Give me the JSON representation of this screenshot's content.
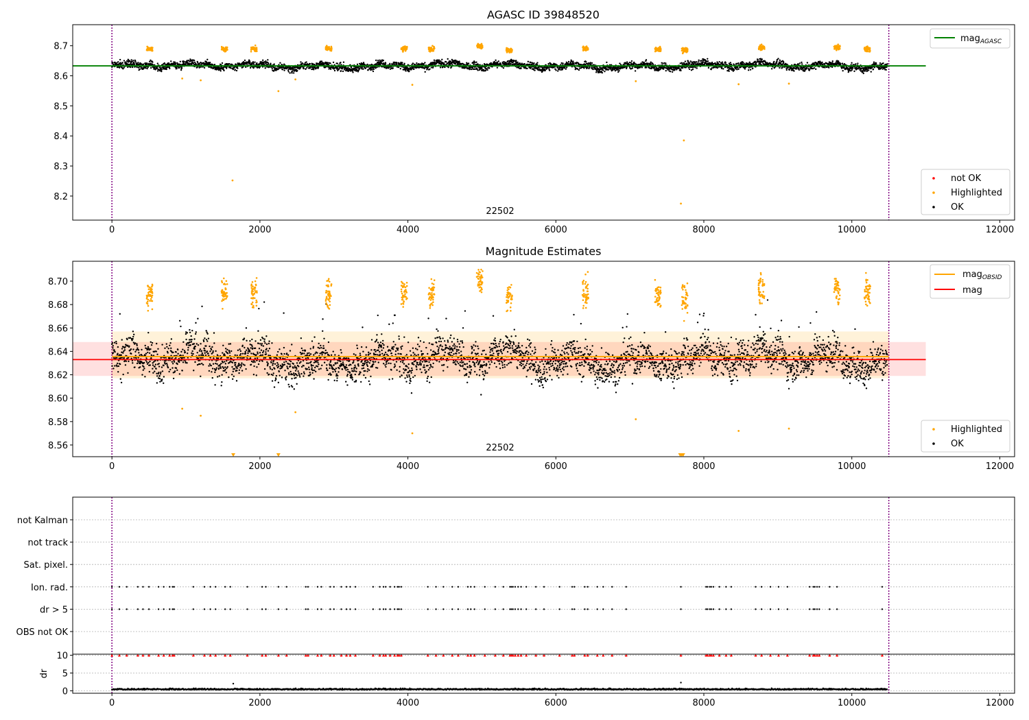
{
  "chart_data": [
    {
      "type": "scatter",
      "title": "AGASC ID 39848520",
      "obsid_label": "22502",
      "xlim": [
        -530,
        12200
      ],
      "ylim": [
        8.12,
        8.77
      ],
      "xticks": [
        0,
        2000,
        4000,
        6000,
        8000,
        10000,
        12000
      ],
      "yticks": [
        8.2,
        8.3,
        8.4,
        8.5,
        8.6,
        8.7
      ],
      "ytick_labels": [
        "8.2",
        "8.3",
        "8.4",
        "8.5",
        "8.6",
        "8.7"
      ],
      "obs_bounds": [
        0,
        10500
      ],
      "mag_agasc": 8.633,
      "mag_agasc_range": [
        -530,
        11000
      ],
      "legend_lines": [
        {
          "name": "mag",
          "sub": "AGASC",
          "color": "#008000"
        }
      ],
      "legend_points": [
        {
          "name": "not OK",
          "color": "#ff0000"
        },
        {
          "name": "Highlighted",
          "color": "#ffa500"
        },
        {
          "name": "OK",
          "color": "#000000"
        }
      ],
      "ok_band": [
        8.618,
        8.648
      ],
      "highlight_clusters": [
        [
          510,
          8.69
        ],
        [
          1520,
          8.69
        ],
        [
          1920,
          8.69
        ],
        [
          2930,
          8.69
        ],
        [
          3950,
          8.69
        ],
        [
          4320,
          8.69
        ],
        [
          4970,
          8.7
        ],
        [
          5370,
          8.685
        ],
        [
          6400,
          8.69
        ],
        [
          7380,
          8.687
        ],
        [
          7740,
          8.685
        ],
        [
          8780,
          8.693
        ],
        [
          9800,
          8.693
        ],
        [
          10210,
          8.69
        ]
      ],
      "outliers": [
        [
          950,
          8.591
        ],
        [
          1200,
          8.585
        ],
        [
          1630,
          8.252
        ],
        [
          2250,
          8.549
        ],
        [
          2480,
          8.588
        ],
        [
          4060,
          8.57
        ],
        [
          7080,
          8.582
        ],
        [
          7690,
          8.175
        ],
        [
          7730,
          8.385
        ],
        [
          8470,
          8.572
        ],
        [
          9150,
          8.574
        ]
      ]
    },
    {
      "type": "scatter",
      "title": "Magnitude Estimates",
      "obsid_label": "22502",
      "xlim": [
        -530,
        12200
      ],
      "ylim": [
        8.55,
        8.717
      ],
      "xticks": [
        0,
        2000,
        4000,
        6000,
        8000,
        10000,
        12000
      ],
      "yticks": [
        8.56,
        8.58,
        8.6,
        8.62,
        8.64,
        8.66,
        8.68,
        8.7
      ],
      "ytick_labels": [
        "8.56",
        "8.58",
        "8.60",
        "8.62",
        "8.64",
        "8.66",
        "8.68",
        "8.70"
      ],
      "obs_bounds": [
        0,
        10500
      ],
      "mag_obsid": 8.6355,
      "mag_obsid_band": [
        8.617,
        8.657
      ],
      "mag": 8.633,
      "mag_band": [
        8.619,
        8.648
      ],
      "mag_range": [
        -530,
        11000
      ],
      "legend_lines": [
        {
          "name": "mag",
          "sub": "OBSID",
          "color": "#ffa500"
        },
        {
          "name": "mag",
          "sub": "",
          "color": "#ff0000"
        }
      ],
      "legend_points": [
        {
          "name": "Highlighted",
          "color": "#ffa500"
        },
        {
          "name": "OK",
          "color": "#000000"
        }
      ],
      "below_markers": [
        1640,
        2250,
        7680,
        7700,
        7720
      ]
    },
    {
      "type": "scatter",
      "title": "",
      "xlim": [
        -530,
        12200
      ],
      "xticks": [
        0,
        2000,
        4000,
        6000,
        8000,
        10000,
        12000
      ],
      "obs_bounds": [
        0,
        10500
      ],
      "flag_labels": [
        "not Kalman",
        "not track",
        "Sat. pixel.",
        "Ion. rad.",
        "dr > 5",
        "OBS not OK"
      ],
      "flag_x": [
        0,
        100,
        200,
        350,
        420,
        500,
        630,
        700,
        780,
        820,
        840,
        1100,
        1250,
        1330,
        1400,
        1530,
        1600,
        1830,
        2030,
        2080,
        2250,
        2360,
        2620,
        2650,
        2780,
        2830,
        2950,
        3000,
        3100,
        3170,
        3220,
        3290,
        3530,
        3620,
        3670,
        3700,
        3760,
        3820,
        3860,
        3880,
        3910,
        4270,
        4380,
        4480,
        4600,
        4680,
        4810,
        4850,
        4900,
        5040,
        5180,
        5290,
        5380,
        5400,
        5420,
        5450,
        5490,
        5530,
        5600,
        5730,
        5840,
        6050,
        6220,
        6250,
        6390,
        6430,
        6560,
        6640,
        6760,
        6950,
        7690,
        8030,
        8050,
        8080,
        8100,
        8130,
        8210,
        8300,
        8370,
        8700,
        8780,
        8900,
        9010,
        9130,
        9430,
        9480,
        9500,
        9530,
        9560,
        9700,
        9800,
        10410
      ],
      "dr_ylim": [
        -0.7,
        10.3
      ],
      "dr_yticks": [
        0,
        5,
        10
      ],
      "dr_ytick_labels": [
        "0",
        "5",
        "10"
      ],
      "dr_ylabel": "dr",
      "dr_level": 0.3,
      "dr_spikes": [
        [
          1640,
          2.0
        ],
        [
          7690,
          2.3
        ]
      ]
    }
  ]
}
